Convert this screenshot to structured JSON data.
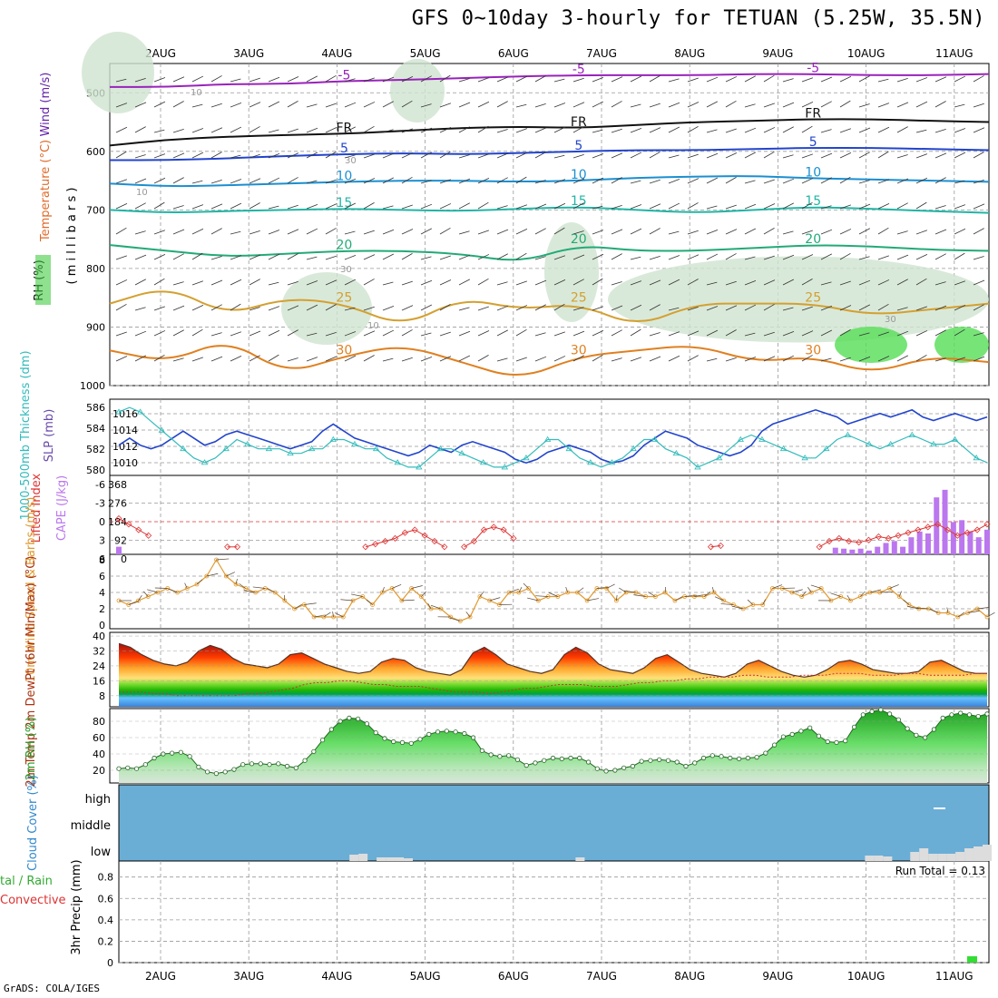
{
  "title": "GFS 0~10day 3-hourly for TETUAN (5.25W, 35.5N)",
  "footer": "GrADS: COLA/IGES",
  "dates": [
    "2AUG",
    "3AUG",
    "4AUG",
    "5AUG",
    "6AUG",
    "7AUG",
    "8AUG",
    "9AUG",
    "10AUG",
    "11AUG"
  ],
  "colors": {
    "sky": "#6aaed6",
    "grid": "#999999",
    "precip": "#33dd33",
    "cape": "#bb77ee",
    "li": "#dd3333",
    "slp": "#2244cc",
    "thick": "#33bbbb",
    "wind": "#e09a30",
    "rh": "#33cc33"
  },
  "chart_data": [
    {
      "type": "contour-profile",
      "panel": "upper-air",
      "ylabel_parts": [
        "Wind (m/s)",
        "Temperature (°C)",
        "RH (%)"
      ],
      "ylabel_main": "( m i l l i b a r s )",
      "ylim": [
        1000,
        450
      ],
      "yticks": [
        500,
        600,
        700,
        800,
        900,
        1000
      ],
      "isotherm_labels": [
        {
          "value": "-5",
          "color": "#9922bb",
          "series": [
            490,
            490,
            485,
            485,
            480,
            478,
            475,
            472,
            470,
            470,
            470,
            468,
            468,
            470,
            470,
            468
          ]
        },
        {
          "value": "FR",
          "color": "#111111",
          "series": [
            590,
            580,
            575,
            572,
            570,
            565,
            560,
            558,
            560,
            555,
            550,
            548,
            545,
            545,
            548,
            550
          ]
        },
        {
          "value": "5",
          "color": "#2244cc",
          "series": [
            615,
            615,
            612,
            608,
            605,
            603,
            605,
            603,
            600,
            598,
            598,
            596,
            594,
            594,
            596,
            598
          ]
        },
        {
          "value": "10",
          "color": "#1b8fd0",
          "series": [
            655,
            660,
            658,
            655,
            652,
            650,
            650,
            652,
            650,
            645,
            643,
            642,
            646,
            648,
            650,
            652
          ]
        },
        {
          "value": "15",
          "color": "#22b5a5",
          "series": [
            700,
            705,
            702,
            700,
            698,
            700,
            702,
            698,
            695,
            700,
            705,
            700,
            695,
            698,
            702,
            705
          ]
        },
        {
          "value": "20",
          "color": "#22aa77",
          "series": [
            760,
            770,
            780,
            775,
            770,
            770,
            775,
            790,
            760,
            770,
            770,
            765,
            760,
            762,
            768,
            770
          ]
        },
        {
          "value": "25",
          "color": "#d4a030",
          "series": [
            860,
            830,
            880,
            850,
            860,
            900,
            850,
            870,
            860,
            900,
            860,
            860,
            860,
            880,
            870,
            860
          ]
        },
        {
          "value": "30",
          "color": "#e08020",
          "series": [
            940,
            960,
            920,
            980,
            950,
            930,
            960,
            990,
            950,
            940,
            930,
            960,
            950,
            980,
            950,
            960
          ]
        }
      ],
      "rh_labels": [
        "10",
        "30",
        "10",
        "30",
        "10",
        "30"
      ]
    },
    {
      "type": "line",
      "panel": "slp-thickness",
      "ylabel_left": "1000-500mb Thickness (dm)",
      "ylabel_right": "SLP (mb)",
      "left_ticks": [
        580,
        582,
        584,
        586
      ],
      "right_ticks": [
        1010,
        1012,
        1014,
        1016
      ],
      "series": [
        {
          "name": "SLP",
          "axis": "right",
          "values": [
            1012,
            1013,
            1012,
            1011.5,
            1012,
            1013,
            1014,
            1013,
            1012,
            1012.5,
            1013.5,
            1014,
            1013.5,
            1013,
            1012.5,
            1012,
            1011.5,
            1012,
            1012.5,
            1014,
            1015,
            1014,
            1013,
            1012.5,
            1012,
            1011.5,
            1011,
            1010.5,
            1011,
            1012,
            1011.5,
            1011,
            1012,
            1012.5,
            1012,
            1011.5,
            1011,
            1010,
            1009.5,
            1010,
            1011,
            1011.5,
            1012,
            1011.5,
            1011,
            1010,
            1009.5,
            1009.8,
            1010.5,
            1012,
            1013,
            1014,
            1013.5,
            1013,
            1012,
            1011.5,
            1011,
            1010.5,
            1011,
            1012,
            1014,
            1015,
            1015.5,
            1016,
            1016.5,
            1017,
            1016.5,
            1016,
            1015,
            1015.5,
            1016,
            1016.5,
            1016,
            1016.5,
            1017,
            1016,
            1015.5,
            1016,
            1016.5,
            1016,
            1015.5,
            1016
          ]
        },
        {
          "name": "Thickness",
          "axis": "left",
          "values": [
            586,
            586.5,
            586,
            585,
            584,
            583,
            582,
            581,
            580.5,
            581,
            582,
            583,
            582.5,
            582,
            582,
            582,
            581.5,
            581.5,
            582,
            582,
            583,
            583,
            582.5,
            582,
            582,
            581,
            580.5,
            580,
            580,
            581,
            582,
            582,
            581.5,
            581,
            580.5,
            580,
            580,
            580.5,
            581,
            582,
            583,
            583,
            582,
            581,
            580.5,
            580,
            580.5,
            581,
            582,
            583,
            583,
            582,
            581.5,
            581,
            580,
            580.5,
            581,
            582,
            583,
            583.5,
            583,
            582.5,
            582,
            581.5,
            581,
            581,
            582,
            583,
            583.5,
            583,
            582.5,
            582,
            582.5,
            583,
            583.5,
            583,
            582.5,
            582.5,
            583,
            582,
            581,
            580.5
          ]
        }
      ]
    },
    {
      "type": "bar+line",
      "panel": "cape-li",
      "ylabel_left": "Lifted Index",
      "ylabel_right": "CAPE (J/kg)",
      "li_ticks": [
        -6,
        -3,
        0,
        3,
        6
      ],
      "cape_ticks": [
        368,
        276,
        184,
        92,
        0
      ],
      "li_values": [
        0,
        1,
        2,
        3,
        6,
        6,
        6,
        6,
        6,
        6,
        6,
        5,
        5,
        6,
        6,
        6,
        6,
        6,
        6,
        6,
        6,
        6,
        6,
        6,
        6,
        5,
        4.5,
        4,
        3.5,
        2.5,
        2,
        3,
        4,
        5,
        6,
        5,
        4,
        2,
        1.5,
        2,
        3.5,
        6,
        6,
        6,
        6,
        6,
        6,
        6,
        6,
        6,
        6,
        6,
        6,
        6,
        6,
        6,
        6,
        6,
        6,
        6,
        5,
        4.8,
        6,
        6,
        6,
        6,
        6,
        6,
        6,
        6,
        6,
        5,
        4,
        3.5,
        4,
        4.2,
        3.8,
        3.2,
        3.5,
        3,
        2.5,
        2,
        1.5,
        1,
        2,
        3,
        2.5,
        2,
        1
      ],
      "cape_values": [
        40,
        0,
        0,
        0,
        0,
        0,
        0,
        0,
        0,
        0,
        0,
        0,
        0,
        0,
        0,
        0,
        0,
        0,
        0,
        0,
        0,
        0,
        0,
        0,
        0,
        0,
        0,
        0,
        0,
        0,
        0,
        0,
        0,
        0,
        0,
        0,
        0,
        0,
        0,
        0,
        0,
        0,
        0,
        0,
        0,
        0,
        0,
        0,
        0,
        0,
        0,
        0,
        0,
        0,
        0,
        0,
        0,
        0,
        0,
        0,
        0,
        0,
        0,
        0,
        0,
        0,
        0,
        0,
        0,
        0,
        0,
        0,
        0,
        0,
        0,
        0,
        0,
        0,
        0,
        0,
        0,
        0,
        0,
        0,
        0,
        35,
        30,
        25,
        30,
        20,
        40,
        60,
        70,
        40,
        90,
        120,
        110,
        300,
        340,
        170,
        180,
        120,
        90,
        130
      ]
    },
    {
      "type": "line",
      "panel": "10m-wind",
      "ylabel": "10m Wind Speed & Barbs (m/s)",
      "yticks": [
        0,
        2,
        4,
        6,
        8
      ],
      "values": [
        3,
        2.5,
        3,
        3.5,
        4,
        4.5,
        4,
        4.5,
        5,
        6,
        8,
        6,
        5,
        4.5,
        4,
        4.5,
        4,
        3,
        2,
        2.5,
        1,
        1,
        1,
        1,
        3,
        3.5,
        2.5,
        4,
        4.5,
        3,
        4.5,
        3.5,
        2,
        2,
        1,
        0.5,
        1,
        3.5,
        3,
        2.5,
        4,
        4,
        4.5,
        3,
        3.5,
        3.5,
        4,
        4,
        3,
        4.5,
        4.5,
        3,
        4,
        4,
        3.5,
        3.5,
        4,
        3,
        3.5,
        3.5,
        3.5,
        4,
        3,
        2.5,
        2,
        2.5,
        2.5,
        4.5,
        4.5,
        4,
        3.5,
        4,
        4.5,
        3,
        3.5,
        3,
        3.5,
        4,
        4,
        4.5,
        3.5,
        2.5,
        2,
        2,
        1.5,
        1.5,
        1,
        1.5,
        2,
        1
      ]
    },
    {
      "type": "area+line",
      "panel": "2m-temp",
      "ylabel": "2m Temp 2m DewPt (6hr Min/Max) (°C)",
      "yticks": [
        8,
        16,
        24,
        32,
        40
      ],
      "temp_values": [
        36,
        34,
        30,
        27,
        25,
        24,
        26,
        32,
        35,
        33,
        28,
        25,
        24,
        23,
        25,
        30,
        31,
        28,
        25,
        23,
        21,
        20,
        21,
        26,
        28,
        27,
        23,
        21,
        20,
        19,
        22,
        31,
        34,
        30,
        25,
        23,
        21,
        20,
        22,
        30,
        34,
        31,
        25,
        22,
        21,
        20,
        23,
        28,
        30,
        26,
        22,
        20,
        19,
        18,
        20,
        25,
        27,
        24,
        21,
        19,
        18,
        19,
        22,
        26,
        27,
        25,
        22,
        21,
        20,
        20,
        21,
        26,
        27,
        24,
        21,
        20,
        20
      ],
      "dew_values": [
        10,
        10,
        10,
        9,
        9,
        8,
        8,
        8,
        8,
        8,
        8,
        9,
        9,
        10,
        11,
        12,
        14,
        15,
        15,
        16,
        16,
        15,
        14,
        14,
        13,
        13,
        13,
        12,
        11,
        10,
        10,
        10,
        9,
        10,
        11,
        12,
        12,
        13,
        14,
        14,
        14,
        13,
        13,
        13,
        14,
        15,
        15,
        16,
        16,
        17,
        17,
        18,
        18,
        18,
        19,
        19,
        18,
        18,
        18,
        19,
        19,
        19,
        20,
        20,
        20,
        19,
        19,
        19,
        20,
        20,
        19,
        19,
        19,
        19,
        20,
        20
      ]
    },
    {
      "type": "area+line",
      "panel": "2m-rh",
      "ylabel": "2m RH (%)",
      "yticks": [
        20,
        40,
        60,
        80
      ],
      "values": [
        22,
        23,
        22,
        27,
        35,
        40,
        41,
        42,
        37,
        24,
        18,
        16,
        18,
        21,
        27,
        28,
        28,
        27,
        28,
        25,
        23,
        32,
        43,
        57,
        70,
        80,
        84,
        83,
        77,
        66,
        59,
        55,
        54,
        53,
        58,
        64,
        67,
        68,
        67,
        65,
        60,
        44,
        39,
        37,
        38,
        33,
        26,
        29,
        32,
        35,
        34,
        35,
        35,
        30,
        22,
        19,
        20,
        23,
        25,
        31,
        32,
        33,
        32,
        30,
        25,
        29,
        35,
        38,
        37,
        35,
        34,
        35,
        36,
        41,
        51,
        61,
        64,
        68,
        72,
        62,
        55,
        54,
        56,
        73,
        88,
        92,
        94,
        89,
        82,
        71,
        63,
        60,
        70,
        84,
        88,
        90,
        88,
        86,
        89
      ]
    },
    {
      "type": "bar",
      "panel": "cloud-cover",
      "ylabel": "Cloud Cover (%)",
      "levels": [
        "high",
        "middle",
        "low"
      ],
      "low_values": [
        0,
        0,
        0,
        0,
        0,
        0,
        0,
        0,
        0,
        0,
        0,
        0,
        0,
        0,
        0,
        0,
        0,
        0,
        0,
        0,
        0,
        0,
        0,
        0,
        0,
        0,
        7,
        8,
        0,
        4,
        4,
        4,
        3,
        0,
        0,
        0,
        0,
        0,
        0,
        0,
        0,
        0,
        0,
        0,
        0,
        0,
        0,
        0,
        0,
        0,
        0,
        4,
        0,
        0,
        0,
        0,
        0,
        0,
        0,
        0,
        0,
        0,
        0,
        0,
        0,
        0,
        0,
        0,
        0,
        0,
        0,
        0,
        0,
        0,
        0,
        0,
        0,
        0,
        0,
        0,
        0,
        0,
        0,
        6,
        6,
        5,
        0,
        0,
        10,
        14,
        8,
        8,
        8,
        10,
        14,
        16,
        18
      ],
      "high_marker": "10AUG-11AUG"
    },
    {
      "type": "bar",
      "panel": "precip",
      "ylabel": "3hr Precip (mm)",
      "left_labels": [
        "tal / Rain",
        "Convective"
      ],
      "run_total_label": "Run Total = 0.13",
      "yticks": [
        0,
        0.2,
        0.4,
        0.6,
        0.8
      ],
      "values_label": "0.03 at 11AUG"
    }
  ]
}
